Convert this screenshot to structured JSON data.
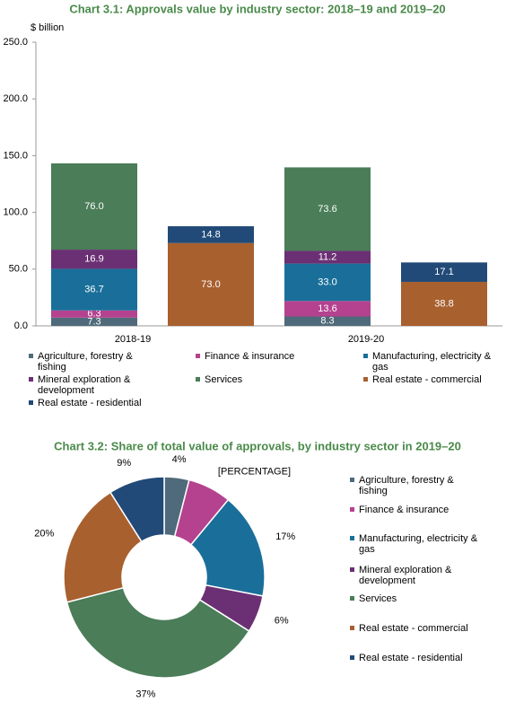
{
  "chart_data": [
    {
      "type": "stacked-bar",
      "title": "Chart 3.1: Approvals value by industry sector: 2018–19 and 2019–20",
      "y_label": "$ billion",
      "categories": [
        "2018-19",
        null,
        "2019-20",
        null
      ],
      "ylim": [
        0,
        250
      ],
      "yticks": [
        {
          "value": 0,
          "label": "0.0"
        },
        {
          "value": 50,
          "label": "50.0"
        },
        {
          "value": 100,
          "label": "100.0"
        },
        {
          "value": 150,
          "label": "150.0"
        },
        {
          "value": 200,
          "label": "200.0"
        },
        {
          "value": 250,
          "label": "250.0"
        }
      ],
      "grid": false,
      "series": [
        {
          "name": "Agriculture, forestry & fishing",
          "color": "#4f6a7a",
          "values": [
            7.3,
            null,
            8.3,
            null
          ],
          "value_labels": [
            "7.3",
            null,
            "8.3",
            null
          ]
        },
        {
          "name": "Finance & insurance",
          "color": "#b5428f",
          "values": [
            6.3,
            null,
            13.6,
            null
          ],
          "value_labels": [
            "6.3",
            null,
            "13.6",
            null
          ]
        },
        {
          "name": "Manufacturing, electricity & gas",
          "color": "#1a6f9a",
          "values": [
            36.7,
            null,
            33.0,
            null
          ],
          "value_labels": [
            "36.7",
            null,
            "33.0",
            null
          ]
        },
        {
          "name": "Mineral exploration & development",
          "color": "#6b3074",
          "values": [
            16.9,
            null,
            11.2,
            null
          ],
          "value_labels": [
            "16.9",
            null,
            "11.2",
            null
          ]
        },
        {
          "name": "Services",
          "color": "#4a7d58",
          "values": [
            76.0,
            null,
            73.6,
            null
          ],
          "value_labels": [
            "76.0",
            null,
            "73.6",
            null
          ]
        },
        {
          "name": "Real estate - commercial",
          "color": "#a8602f",
          "values": [
            null,
            73.0,
            null,
            38.8
          ],
          "value_labels": [
            null,
            "73.0",
            null,
            "38.8"
          ]
        },
        {
          "name": "Real estate - residential",
          "color": "#214a78",
          "values": [
            null,
            14.8,
            null,
            17.1
          ],
          "value_labels": [
            null,
            "14.8",
            null,
            "17.1"
          ]
        }
      ]
    },
    {
      "type": "donut",
      "title": "Chart 3.2: Share of total value of approvals, by industry sector in 2019–20",
      "categories": [
        "Agriculture, forestry & fishing",
        "Finance & insurance",
        "Manufacturing, electricity & gas",
        "Mineral exploration & development",
        "Services",
        "Real estate - commercial",
        "Real estate - residential"
      ],
      "colors": [
        "#4f6a7a",
        "#b5428f",
        "#1a6f9a",
        "#6b3074",
        "#4a7d58",
        "#a8602f",
        "#214a78"
      ],
      "values": [
        4,
        7,
        17,
        6,
        37,
        20,
        9
      ],
      "value_labels": [
        "4%",
        "[PERCENTAGE]",
        "17%",
        "6%",
        "37%",
        "20%",
        "9%"
      ]
    }
  ]
}
